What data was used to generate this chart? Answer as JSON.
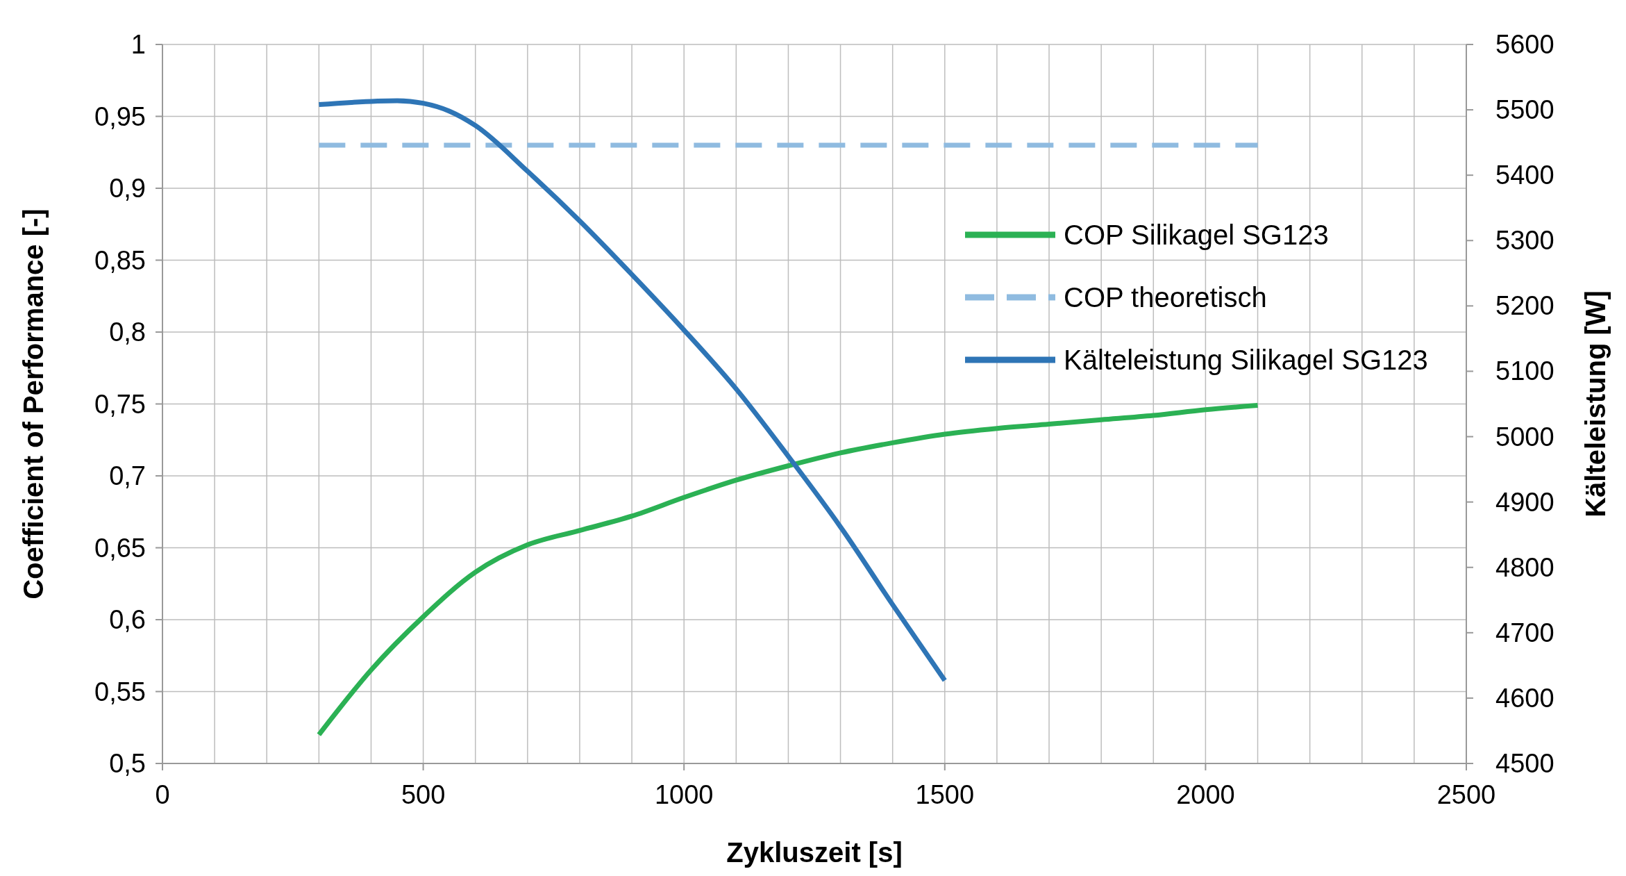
{
  "chart_data": {
    "type": "line",
    "xlabel": "Zykluszeit [s]",
    "ylabel": "Coefficient of Performance [-]",
    "y2label": "Kälteleistung [W]",
    "xlim": [
      0,
      2500
    ],
    "xticks": [
      0,
      500,
      1000,
      1500,
      2000,
      2500
    ],
    "ylim": [
      0.5,
      1
    ],
    "yticks": [
      {
        "value": 0.5,
        "label": "0,5"
      },
      {
        "value": 0.55,
        "label": "0,55"
      },
      {
        "value": 0.6,
        "label": "0,6"
      },
      {
        "value": 0.65,
        "label": "0,65"
      },
      {
        "value": 0.7,
        "label": "0,7"
      },
      {
        "value": 0.75,
        "label": "0,75"
      },
      {
        "value": 0.8,
        "label": "0,8"
      },
      {
        "value": 0.85,
        "label": "0,85"
      },
      {
        "value": 0.9,
        "label": "0,9"
      },
      {
        "value": 0.95,
        "label": "0,95"
      },
      {
        "value": 1,
        "label": "1"
      }
    ],
    "y2lim": [
      4500,
      5600
    ],
    "y2ticks": [
      4500,
      4600,
      4700,
      4800,
      4900,
      5000,
      5100,
      5200,
      5300,
      5400,
      5500,
      5600
    ],
    "grid": true,
    "legend": "right",
    "series": [
      {
        "name": "COP Silikagel SG123",
        "color": "#2bb154",
        "line_style": "solid",
        "x": [
          300,
          400,
          500,
          600,
          700,
          800,
          900,
          1000,
          1100,
          1200,
          1300,
          1400,
          1500,
          1600,
          1700,
          1800,
          1900,
          2000,
          2100
        ],
        "values": [
          0.52,
          0.565,
          0.602,
          0.633,
          0.652,
          0.662,
          0.672,
          0.685,
          0.697,
          0.707,
          0.716,
          0.723,
          0.729,
          0.733,
          0.736,
          0.739,
          0.742,
          0.746,
          0.749
        ]
      },
      {
        "name": "COP theoretisch",
        "color": "#8fbbe0",
        "line_style": "dashed",
        "x": [
          300,
          2100
        ],
        "values": [
          0.93,
          0.93
        ]
      },
      {
        "name": "Kälteleistung Silikagel SG123",
        "color": "#2e75b6",
        "line_style": "solid",
        "axis": "y2",
        "x": [
          300,
          450,
          500,
          550,
          600,
          700,
          800,
          900,
          1000,
          1100,
          1200,
          1300,
          1400,
          1500
        ],
        "values": [
          5508,
          5514,
          5510,
          5498,
          5476,
          5406,
          5330,
          5248,
          5163,
          5073,
          4970,
          4862,
          4743,
          4627
        ]
      }
    ]
  }
}
